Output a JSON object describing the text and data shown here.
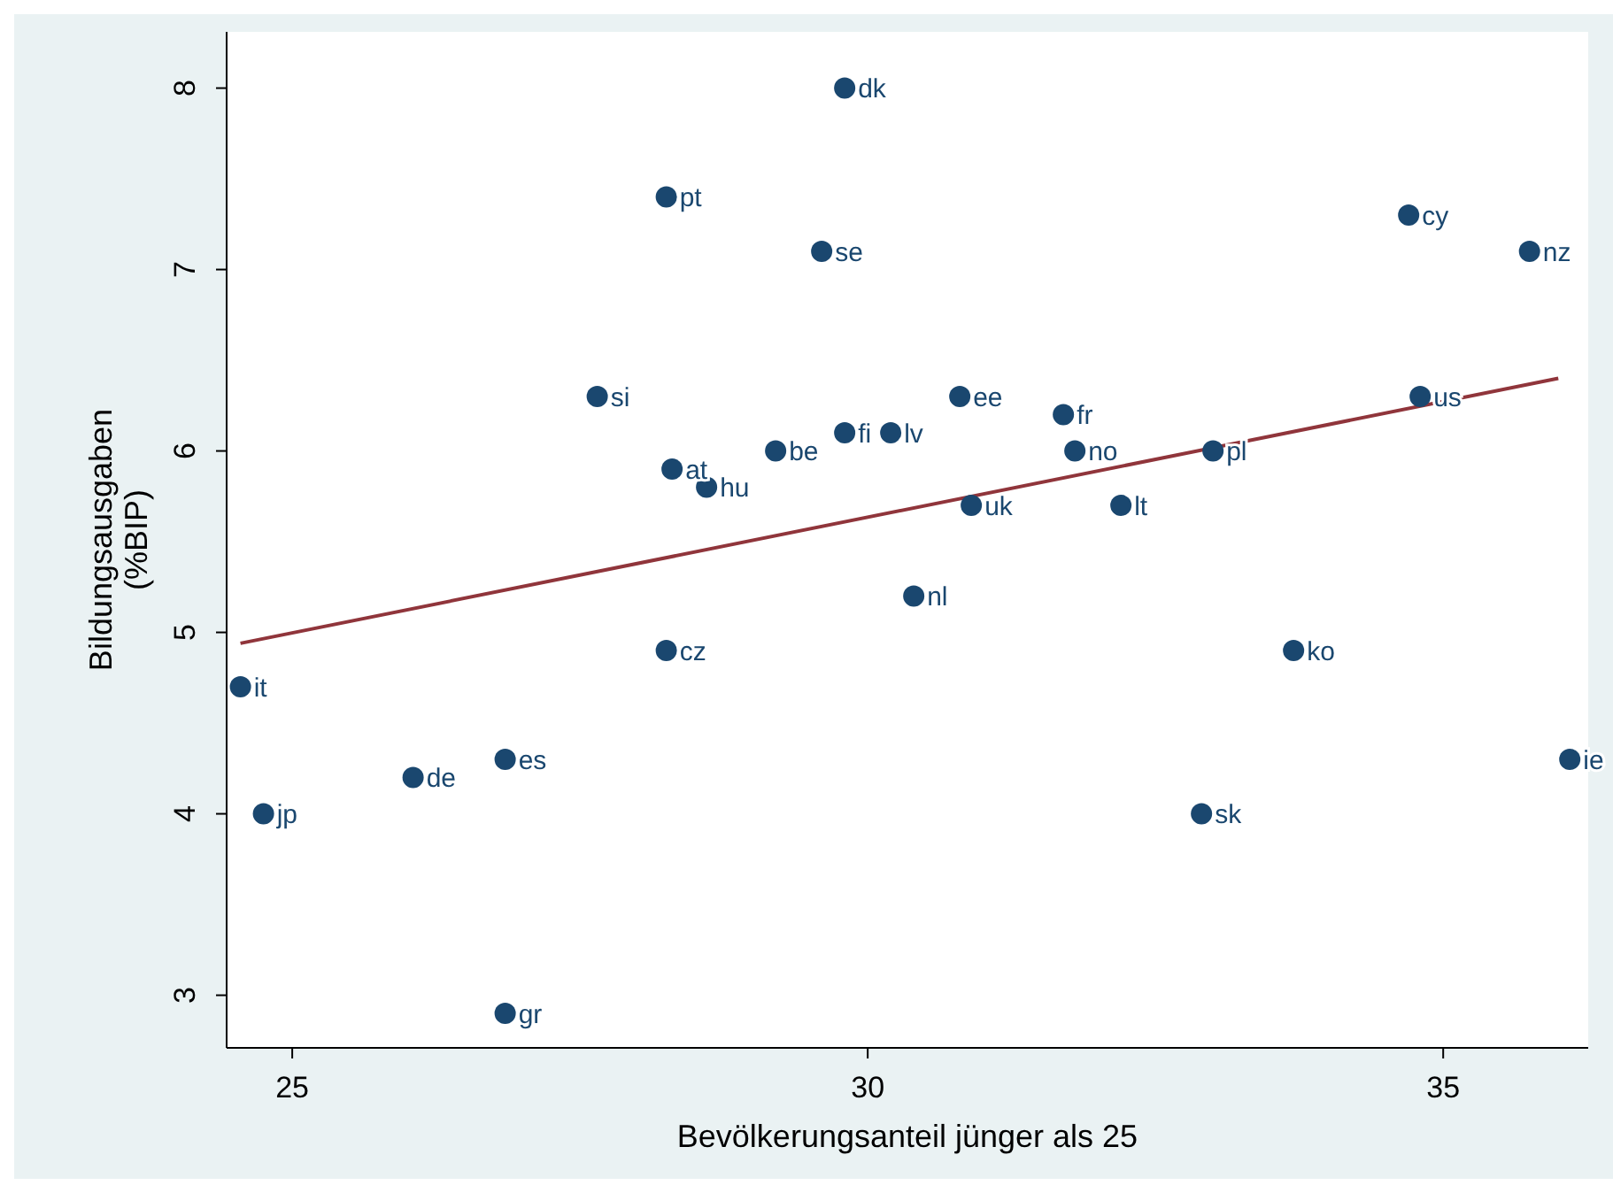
{
  "chart_data": {
    "type": "scatter",
    "xlabel": "Bevölkerungsanteil jünger als 25",
    "ylabel": "Bildungsausgaben\n(%BIP)",
    "xlim": [
      24.43,
      36.26
    ],
    "xticks": [
      25,
      30,
      35
    ],
    "ylim": [
      2.71,
      8.31
    ],
    "yticks": [
      3,
      4,
      5,
      6,
      7,
      8
    ],
    "grid": false,
    "legend": false,
    "marker": "circle",
    "series": [
      {
        "color": "#1a476f",
        "x": [
          29.8,
          28.25,
          29.6,
          34.7,
          35.75,
          27.65,
          30.8,
          31.7,
          34.8,
          29.8,
          30.2,
          29.2,
          31.8,
          33.0,
          28.3,
          28.6,
          30.9,
          32.2,
          30.4,
          28.25,
          33.7,
          24.55,
          26.05,
          26.85,
          36.1,
          24.75,
          32.9,
          26.85
        ],
        "values": [
          8.0,
          7.4,
          7.1,
          7.3,
          7.1,
          6.3,
          6.3,
          6.2,
          6.3,
          6.1,
          6.1,
          6.0,
          6.0,
          6.0,
          5.9,
          5.8,
          5.7,
          5.7,
          5.2,
          4.9,
          4.9,
          4.7,
          4.2,
          4.3,
          4.3,
          4.0,
          4.0,
          2.9
        ],
        "value_labels": [
          "dk",
          "pt",
          "se",
          "cy",
          "nz",
          "si",
          "ee",
          "fr",
          "us",
          "fi",
          "lv",
          "be",
          "no",
          "pl",
          "at",
          "hu",
          "uk",
          "lt",
          "nl",
          "cz",
          "ko",
          "it",
          "de",
          "es",
          "ie",
          "jp",
          "sk",
          "gr"
        ]
      },
      {
        "type": "line",
        "color": "#90353b",
        "x": [
          24.55,
          36.0
        ],
        "values": [
          4.94,
          6.4
        ],
        "marker": "none"
      }
    ]
  }
}
